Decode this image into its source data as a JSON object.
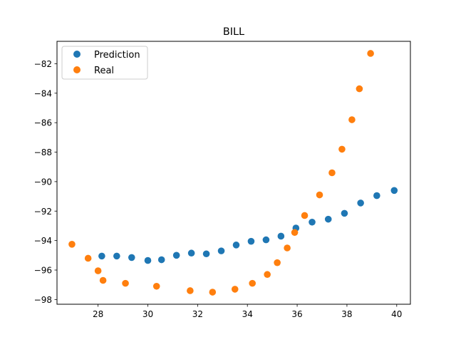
{
  "chart_data": {
    "type": "scatter",
    "title": "BILL",
    "xlabel": "",
    "ylabel": "",
    "xlim": [
      26.35,
      40.55
    ],
    "ylim": [
      -98.32,
      -80.48
    ],
    "xticks": [
      28,
      30,
      32,
      34,
      36,
      38,
      40
    ],
    "yticks": [
      -98,
      -96,
      -94,
      -92,
      -90,
      -88,
      -86,
      -84,
      -82
    ],
    "grid": false,
    "legend_position": "top-left",
    "series": [
      {
        "name": "Prediction",
        "color": "#1f77b4",
        "x": [
          28.15,
          28.75,
          29.35,
          30.0,
          30.55,
          31.15,
          31.75,
          32.35,
          32.95,
          33.55,
          34.15,
          34.75,
          35.35,
          35.95,
          36.6,
          37.25,
          37.9,
          38.55,
          39.2,
          39.9
        ],
        "y": [
          -95.05,
          -95.05,
          -95.15,
          -95.35,
          -95.3,
          -95.0,
          -94.85,
          -94.9,
          -94.7,
          -94.3,
          -94.05,
          -93.95,
          -93.7,
          -93.15,
          -92.75,
          -92.55,
          -92.15,
          -91.45,
          -90.95,
          -90.6
        ]
      },
      {
        "name": "Real",
        "color": "#ff7f0e",
        "x": [
          26.95,
          27.6,
          28.0,
          28.2,
          29.1,
          30.35,
          31.7,
          32.6,
          33.5,
          34.2,
          34.8,
          35.2,
          35.6,
          35.9,
          36.3,
          36.9,
          37.4,
          37.8,
          38.2,
          38.5,
          38.95
        ],
        "y": [
          -94.25,
          -95.2,
          -96.05,
          -96.7,
          -96.9,
          -97.1,
          -97.4,
          -97.5,
          -97.3,
          -96.9,
          -96.3,
          -95.5,
          -94.5,
          -93.45,
          -92.3,
          -90.9,
          -89.4,
          -87.8,
          -85.8,
          -83.7,
          -81.3
        ]
      }
    ]
  }
}
